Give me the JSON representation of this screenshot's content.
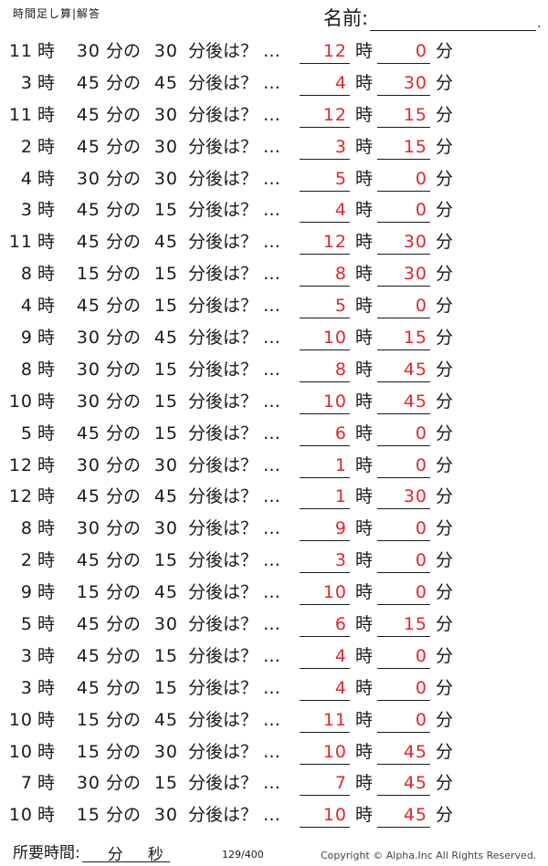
{
  "header": {
    "title": "時間足し算|解答",
    "name_label": "名前:",
    "name_dot": "."
  },
  "labels": {
    "hour": "時",
    "minute_of": "分の",
    "after": "分後は？ …",
    "minute": "分"
  },
  "rows": [
    {
      "h": "11",
      "m": "30",
      "add": "30",
      "ans_h": "12",
      "ans_m": "0"
    },
    {
      "h": "3",
      "m": "45",
      "add": "45",
      "ans_h": "4",
      "ans_m": "30"
    },
    {
      "h": "11",
      "m": "45",
      "add": "30",
      "ans_h": "12",
      "ans_m": "15"
    },
    {
      "h": "2",
      "m": "45",
      "add": "30",
      "ans_h": "3",
      "ans_m": "15"
    },
    {
      "h": "4",
      "m": "30",
      "add": "30",
      "ans_h": "5",
      "ans_m": "0"
    },
    {
      "h": "3",
      "m": "45",
      "add": "15",
      "ans_h": "4",
      "ans_m": "0"
    },
    {
      "h": "11",
      "m": "45",
      "add": "45",
      "ans_h": "12",
      "ans_m": "30"
    },
    {
      "h": "8",
      "m": "15",
      "add": "15",
      "ans_h": "8",
      "ans_m": "30"
    },
    {
      "h": "4",
      "m": "45",
      "add": "15",
      "ans_h": "5",
      "ans_m": "0"
    },
    {
      "h": "9",
      "m": "30",
      "add": "45",
      "ans_h": "10",
      "ans_m": "15"
    },
    {
      "h": "8",
      "m": "30",
      "add": "15",
      "ans_h": "8",
      "ans_m": "45"
    },
    {
      "h": "10",
      "m": "30",
      "add": "15",
      "ans_h": "10",
      "ans_m": "45"
    },
    {
      "h": "5",
      "m": "45",
      "add": "15",
      "ans_h": "6",
      "ans_m": "0"
    },
    {
      "h": "12",
      "m": "30",
      "add": "30",
      "ans_h": "1",
      "ans_m": "0"
    },
    {
      "h": "12",
      "m": "45",
      "add": "45",
      "ans_h": "1",
      "ans_m": "30"
    },
    {
      "h": "8",
      "m": "30",
      "add": "30",
      "ans_h": "9",
      "ans_m": "0"
    },
    {
      "h": "2",
      "m": "45",
      "add": "15",
      "ans_h": "3",
      "ans_m": "0"
    },
    {
      "h": "9",
      "m": "15",
      "add": "45",
      "ans_h": "10",
      "ans_m": "0"
    },
    {
      "h": "5",
      "m": "45",
      "add": "30",
      "ans_h": "6",
      "ans_m": "15"
    },
    {
      "h": "3",
      "m": "45",
      "add": "15",
      "ans_h": "4",
      "ans_m": "0"
    },
    {
      "h": "3",
      "m": "45",
      "add": "15",
      "ans_h": "4",
      "ans_m": "0"
    },
    {
      "h": "10",
      "m": "15",
      "add": "45",
      "ans_h": "11",
      "ans_m": "0"
    },
    {
      "h": "10",
      "m": "15",
      "add": "30",
      "ans_h": "10",
      "ans_m": "45"
    },
    {
      "h": "7",
      "m": "30",
      "add": "15",
      "ans_h": "7",
      "ans_m": "45"
    },
    {
      "h": "10",
      "m": "15",
      "add": "30",
      "ans_h": "10",
      "ans_m": "45"
    }
  ],
  "footer": {
    "time_label": "所要時間:",
    "min": "分",
    "sec": "秒",
    "page": "129/400",
    "copyright": "Copyright ©  Alpha.Inc All Rights Reserved."
  },
  "colors": {
    "answer": "#e0262d",
    "text": "#1a1a1a"
  }
}
